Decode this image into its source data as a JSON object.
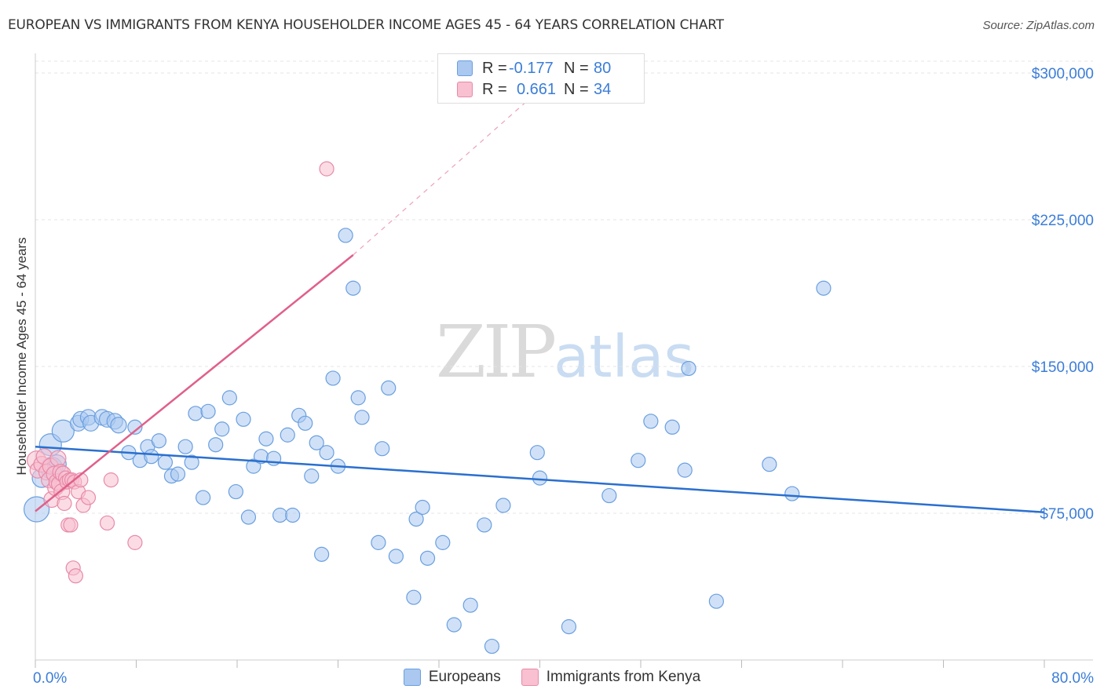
{
  "title": "EUROPEAN VS IMMIGRANTS FROM KENYA HOUSEHOLDER INCOME AGES 45 - 64 YEARS CORRELATION CHART",
  "source": "Source: ZipAtlas.com",
  "watermark": {
    "zip": "ZIP",
    "atlas": "atlas"
  },
  "legend": {
    "rows": [
      {
        "r_label": "R =",
        "r_value": "-0.177",
        "n_label": "N =",
        "n_value": "80",
        "color": "#aac8f0",
        "border": "#6a9fe0"
      },
      {
        "r_label": "R =",
        "r_value": "0.661",
        "n_label": "N =",
        "n_value": "34",
        "color": "#f8c0d0",
        "border": "#e88aa8"
      }
    ]
  },
  "bottom_legend": [
    {
      "label": "Europeans",
      "color": "#aac8f0",
      "border": "#6a9fe0"
    },
    {
      "label": "Immigrants from Kenya",
      "color": "#f8c0d0",
      "border": "#e88aa8"
    }
  ],
  "chart_data": {
    "type": "scatter",
    "ylabel": "Householder Income Ages 45 - 64 years",
    "x_tick_labels": [
      "0.0%",
      "80.0%"
    ],
    "y_tick_labels": [
      "$300,000",
      "$225,000",
      "$150,000",
      "$75,000"
    ],
    "y_tick_values": [
      300000,
      225000,
      150000,
      75000
    ],
    "xlim": [
      0,
      80
    ],
    "ylim": [
      0,
      306000
    ],
    "grid": true,
    "series": [
      {
        "name": "Europeans",
        "color": "#6a9fe0",
        "fill": "#aac8f0",
        "trend": {
          "x": [
            0,
            80
          ],
          "y": [
            109000,
            75500
          ],
          "color": "#2a6fcf",
          "dashed_to": null
        },
        "points": [
          [
            0.1,
            77000,
            16
          ],
          [
            0.5,
            93000,
            12
          ],
          [
            1.3,
            98000,
            14
          ],
          [
            1.7,
            100000,
            12
          ],
          [
            1.2,
            110000,
            14
          ],
          [
            2.2,
            117000,
            14
          ],
          [
            3.4,
            121000,
            10
          ],
          [
            3.6,
            123000,
            10
          ],
          [
            4.2,
            124000,
            10
          ],
          [
            4.4,
            121000,
            10
          ],
          [
            5.3,
            124000,
            10
          ],
          [
            5.7,
            123000,
            10
          ],
          [
            6.3,
            122000,
            10
          ],
          [
            6.6,
            120000,
            10
          ],
          [
            7.4,
            106000,
            9
          ],
          [
            7.9,
            119000,
            9
          ],
          [
            8.3,
            102000,
            9
          ],
          [
            8.9,
            109000,
            9
          ],
          [
            9.2,
            104000,
            9
          ],
          [
            9.8,
            112000,
            9
          ],
          [
            10.3,
            101000,
            9
          ],
          [
            10.8,
            94000,
            9
          ],
          [
            11.3,
            95000,
            9
          ],
          [
            11.9,
            109000,
            9
          ],
          [
            12.4,
            101000,
            9
          ],
          [
            12.7,
            126000,
            9
          ],
          [
            13.3,
            83000,
            9
          ],
          [
            13.7,
            127000,
            9
          ],
          [
            14.3,
            110000,
            9
          ],
          [
            14.8,
            118000,
            9
          ],
          [
            15.4,
            134000,
            9
          ],
          [
            15.9,
            86000,
            9
          ],
          [
            16.5,
            123000,
            9
          ],
          [
            16.9,
            73000,
            9
          ],
          [
            17.3,
            99000,
            9
          ],
          [
            17.9,
            104000,
            9
          ],
          [
            18.3,
            113000,
            9
          ],
          [
            18.9,
            103000,
            9
          ],
          [
            19.4,
            74000,
            9
          ],
          [
            20.0,
            115000,
            9
          ],
          [
            20.4,
            74000,
            9
          ],
          [
            20.9,
            125000,
            9
          ],
          [
            21.4,
            121000,
            9
          ],
          [
            21.9,
            94000,
            9
          ],
          [
            22.3,
            111000,
            9
          ],
          [
            22.7,
            54000,
            9
          ],
          [
            23.1,
            106000,
            9
          ],
          [
            23.6,
            144000,
            9
          ],
          [
            24.0,
            99000,
            9
          ],
          [
            24.6,
            217000,
            9
          ],
          [
            25.2,
            190000,
            9
          ],
          [
            25.6,
            134000,
            9
          ],
          [
            25.9,
            124000,
            9
          ],
          [
            27.2,
            60000,
            9
          ],
          [
            27.5,
            108000,
            9
          ],
          [
            28.0,
            139000,
            9
          ],
          [
            28.6,
            53000,
            9
          ],
          [
            30.0,
            32000,
            9
          ],
          [
            30.2,
            72000,
            9
          ],
          [
            30.7,
            78000,
            9
          ],
          [
            31.1,
            52000,
            9
          ],
          [
            32.3,
            60000,
            9
          ],
          [
            33.2,
            18000,
            9
          ],
          [
            34.5,
            28000,
            9
          ],
          [
            35.6,
            69000,
            9
          ],
          [
            36.2,
            7000,
            9
          ],
          [
            37.1,
            79000,
            9
          ],
          [
            39.8,
            106000,
            9
          ],
          [
            40.0,
            93000,
            9
          ],
          [
            42.3,
            17000,
            9
          ],
          [
            45.5,
            84000,
            9
          ],
          [
            47.8,
            102000,
            9
          ],
          [
            48.8,
            122000,
            9
          ],
          [
            50.5,
            119000,
            9
          ],
          [
            51.5,
            97000,
            9
          ],
          [
            51.8,
            149000,
            9
          ],
          [
            54.0,
            30000,
            9
          ],
          [
            58.2,
            100000,
            9
          ],
          [
            60.0,
            85000,
            9
          ],
          [
            62.5,
            190000,
            9
          ]
        ]
      },
      {
        "name": "Immigrants from Kenya",
        "color": "#e88aa8",
        "fill": "#f8c0d0",
        "trend": {
          "x": [
            0,
            25.2
          ],
          "y": [
            76000,
            207000
          ],
          "color": "#e0608a",
          "dashed_to": [
            41.5,
            300000
          ]
        },
        "points": [
          [
            0.1,
            102000,
            12
          ],
          [
            0.2,
            97000,
            10
          ],
          [
            0.5,
            100000,
            10
          ],
          [
            0.7,
            104000,
            10
          ],
          [
            0.9,
            96000,
            10
          ],
          [
            1.1,
            92000,
            10
          ],
          [
            1.2,
            99000,
            10
          ],
          [
            1.3,
            82000,
            10
          ],
          [
            1.5,
            95000,
            10
          ],
          [
            1.6,
            88000,
            10
          ],
          [
            1.7,
            91000,
            10
          ],
          [
            1.8,
            103000,
            10
          ],
          [
            1.9,
            90000,
            10
          ],
          [
            2.0,
            96000,
            10
          ],
          [
            2.1,
            86000,
            10
          ],
          [
            2.2,
            95000,
            10
          ],
          [
            2.3,
            80000,
            9
          ],
          [
            2.4,
            93000,
            9
          ],
          [
            2.5,
            91000,
            9
          ],
          [
            2.6,
            69000,
            9
          ],
          [
            2.7,
            92000,
            9
          ],
          [
            2.8,
            69000,
            9
          ],
          [
            2.9,
            92000,
            9
          ],
          [
            3.0,
            47000,
            9
          ],
          [
            3.1,
            91000,
            9
          ],
          [
            3.2,
            43000,
            9
          ],
          [
            3.4,
            86000,
            9
          ],
          [
            3.6,
            92000,
            9
          ],
          [
            3.8,
            79000,
            9
          ],
          [
            4.2,
            83000,
            9
          ],
          [
            5.7,
            70000,
            9
          ],
          [
            6.0,
            92000,
            9
          ],
          [
            7.9,
            60000,
            9
          ],
          [
            23.1,
            251000,
            9
          ]
        ]
      }
    ]
  }
}
